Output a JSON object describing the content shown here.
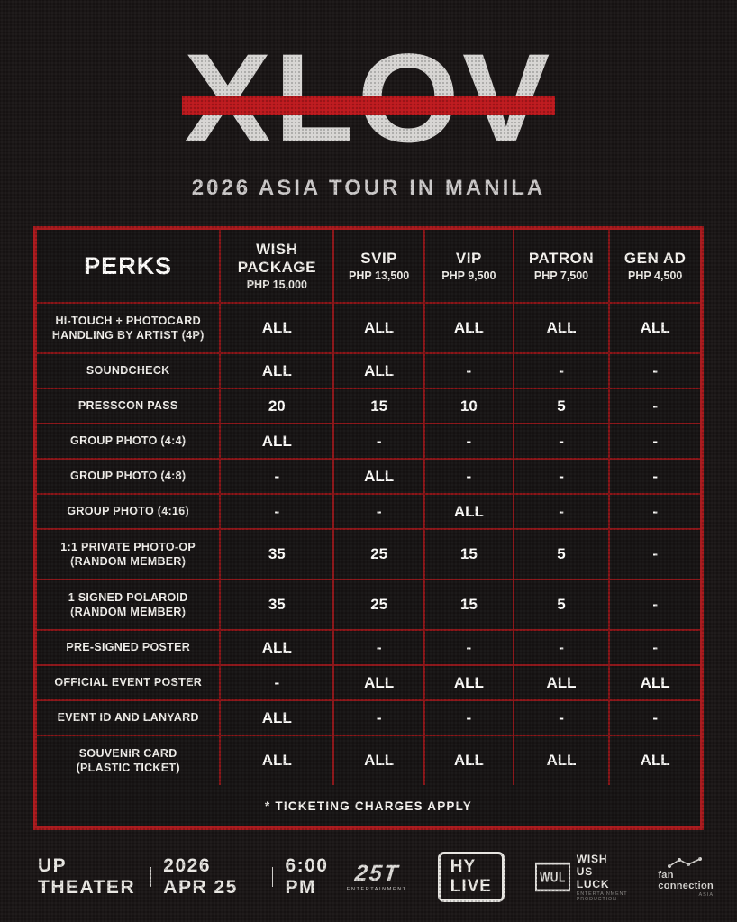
{
  "hero": {
    "logo_text": "XLOV",
    "subtitle": "2026 ASIA TOUR IN MANILA"
  },
  "table": {
    "perks_header": "PERKS",
    "tiers": [
      {
        "name": "WISH\nPACKAGE",
        "price": "PHP 15,000"
      },
      {
        "name": "SVIP",
        "price": "PHP 13,500"
      },
      {
        "name": "VIP",
        "price": "PHP 9,500"
      },
      {
        "name": "PATRON",
        "price": "PHP 7,500"
      },
      {
        "name": "GEN AD",
        "price": "PHP 4,500"
      }
    ],
    "rows": [
      {
        "label": "HI-TOUCH + PHOTOCARD\nHANDLING BY ARTIST (4P)",
        "values": [
          "ALL",
          "ALL",
          "ALL",
          "ALL",
          "ALL"
        ]
      },
      {
        "label": "SOUNDCHECK",
        "values": [
          "ALL",
          "ALL",
          "-",
          "-",
          "-"
        ]
      },
      {
        "label": "PRESSCON PASS",
        "values": [
          "20",
          "15",
          "10",
          "5",
          "-"
        ]
      },
      {
        "label": "GROUP PHOTO (4:4)",
        "values": [
          "ALL",
          "-",
          "-",
          "-",
          "-"
        ]
      },
      {
        "label": "GROUP PHOTO (4:8)",
        "values": [
          "-",
          "ALL",
          "-",
          "-",
          "-"
        ]
      },
      {
        "label": "GROUP PHOTO (4:16)",
        "values": [
          "-",
          "-",
          "ALL",
          "-",
          "-"
        ]
      },
      {
        "label": "1:1 PRIVATE PHOTO-OP\n(RANDOM MEMBER)",
        "values": [
          "35",
          "25",
          "15",
          "5",
          "-"
        ]
      },
      {
        "label": "1 SIGNED POLAROID\n(RANDOM MEMBER)",
        "values": [
          "35",
          "25",
          "15",
          "5",
          "-"
        ]
      },
      {
        "label": "PRE-SIGNED POSTER",
        "values": [
          "ALL",
          "-",
          "-",
          "-",
          "-"
        ]
      },
      {
        "label": "OFFICIAL EVENT POSTER",
        "values": [
          "-",
          "ALL",
          "ALL",
          "ALL",
          "ALL"
        ]
      },
      {
        "label": "EVENT ID AND LANYARD",
        "values": [
          "ALL",
          "-",
          "-",
          "-",
          "-"
        ]
      },
      {
        "label": "SOUVENIR CARD\n(PLASTIC TICKET)",
        "values": [
          "ALL",
          "ALL",
          "ALL",
          "ALL",
          "ALL"
        ]
      }
    ],
    "footnote": "* TICKETING CHARGES APPLY"
  },
  "footer": {
    "venue_parts": [
      "UP THEATER",
      "2026 APR 25",
      "6:00 PM"
    ],
    "sponsors": {
      "ent25t": {
        "name": "25T",
        "sub": "ENTERTAINMENT"
      },
      "hylive": {
        "name": "HY LIVE"
      },
      "wul": {
        "badge": "WUL",
        "name": "WISH US LUCK",
        "sub": "ENTERTAINMENT PRODUCTION"
      },
      "fanconnection": {
        "name": "fan connection",
        "sub": "ASIA"
      }
    }
  },
  "colors": {
    "background": "#1b1717",
    "accent_red": "#bc191e",
    "table_border_red": "#a91a1d",
    "grid_red": "#8a1619",
    "text_light": "#f4f2ee"
  }
}
